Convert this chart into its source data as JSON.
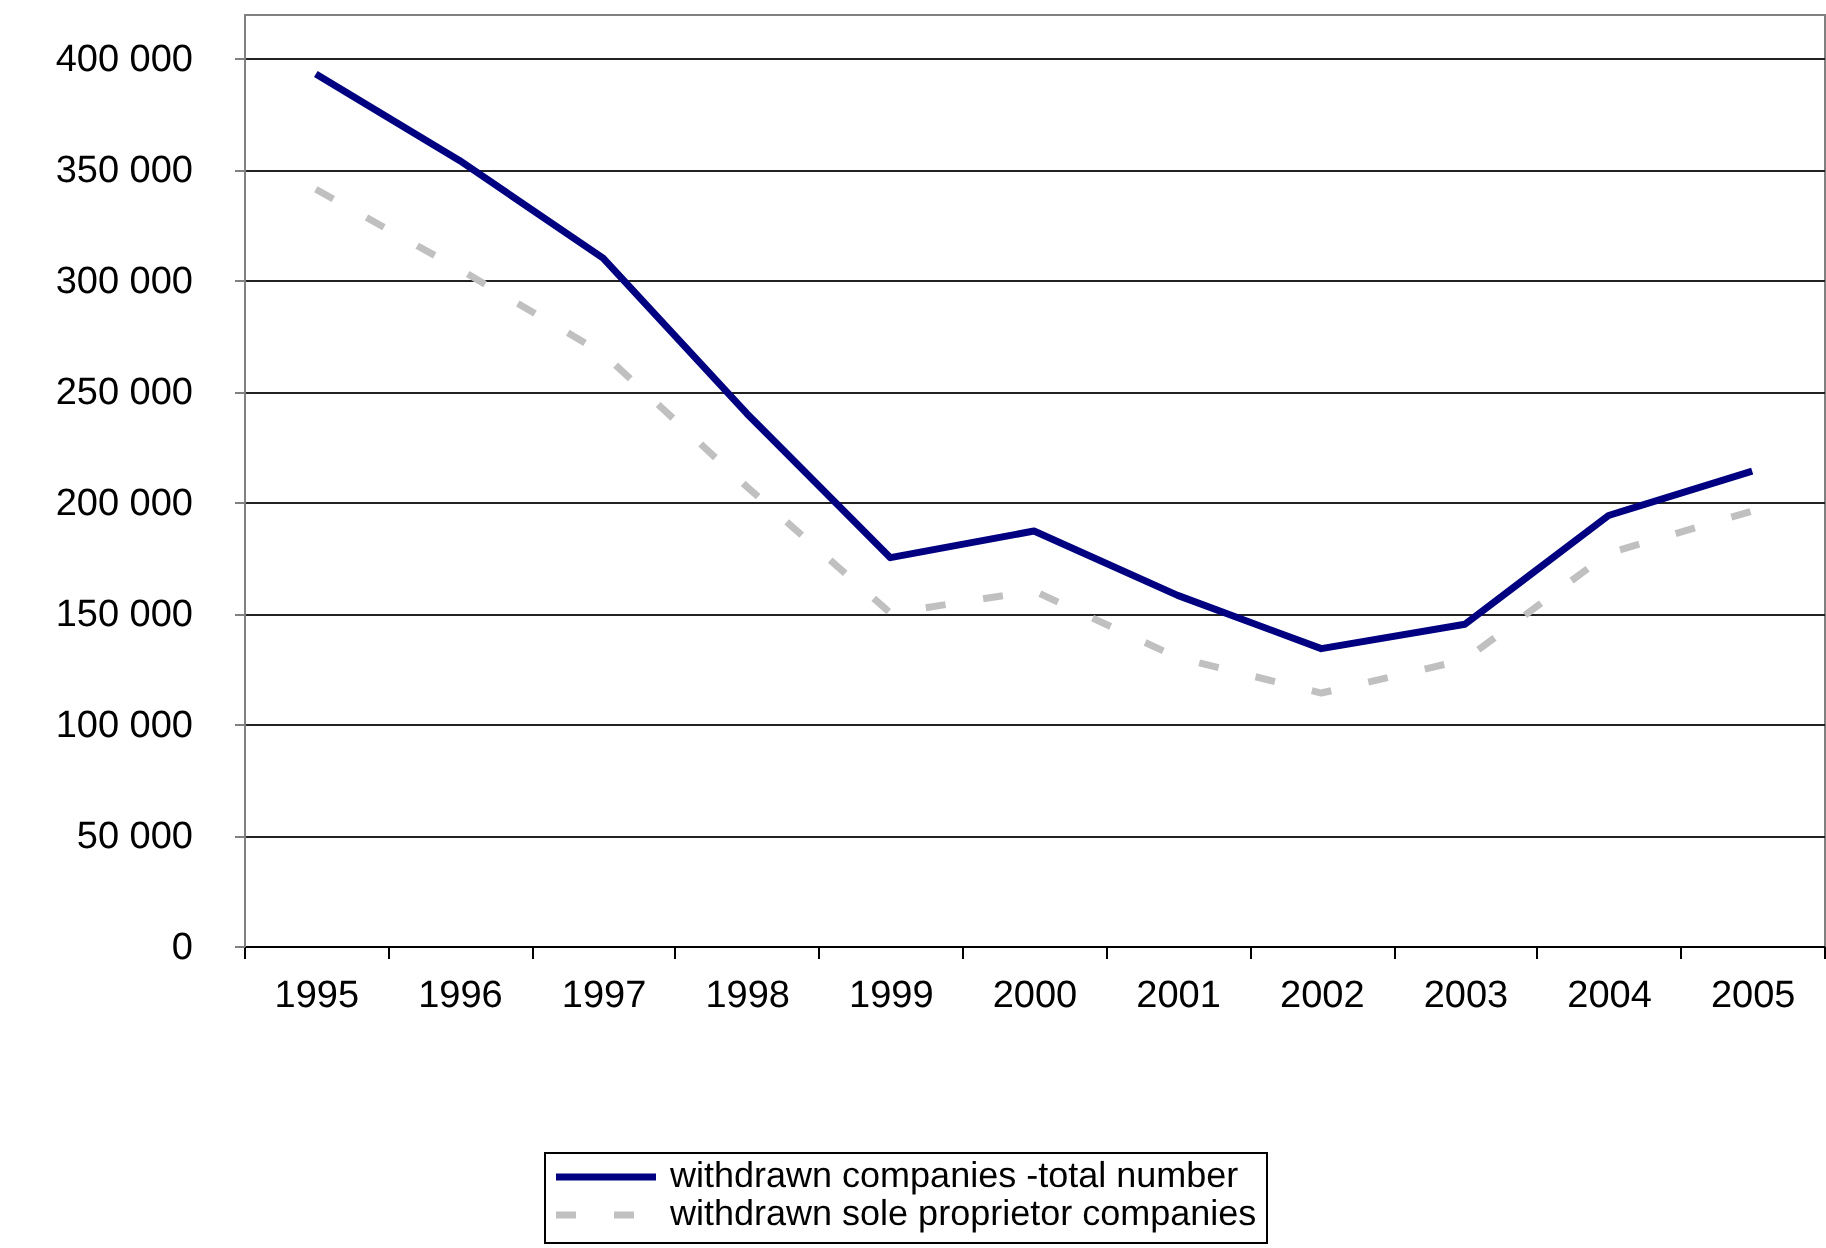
{
  "chart_data": {
    "type": "line",
    "categories": [
      "1995",
      "1996",
      "1997",
      "1998",
      "1999",
      "2000",
      "2001",
      "2002",
      "2003",
      "2004",
      "2005"
    ],
    "series": [
      {
        "name": "withdrawn companies -total number",
        "color": "#000080",
        "line_style": "solid",
        "values": [
          393000,
          354000,
          310000,
          240000,
          175000,
          187000,
          158000,
          134000,
          145000,
          194000,
          214000
        ]
      },
      {
        "name": "withdrawn sole proprietor companies",
        "color": "#c0c0c0",
        "line_style": "dashed",
        "values": [
          341000,
          305000,
          267000,
          207000,
          150000,
          160000,
          130000,
          114000,
          129000,
          177000,
          196000
        ]
      }
    ],
    "ylim": [
      0,
      420000
    ],
    "yticks": [
      0,
      {
        "value": 50000,
        "label": "50 000"
      },
      {
        "value": 100000,
        "label": "100 000"
      },
      {
        "value": 150000,
        "label": "150 000"
      },
      {
        "value": 200000,
        "label": "200 000"
      },
      {
        "value": 250000,
        "label": "250 000"
      },
      {
        "value": 300000,
        "label": "300 000"
      },
      {
        "value": 350000,
        "label": "350 000"
      },
      {
        "value": 400000,
        "label": "400 000"
      }
    ],
    "grid": "y",
    "legend": "bottom",
    "marker": "none"
  }
}
